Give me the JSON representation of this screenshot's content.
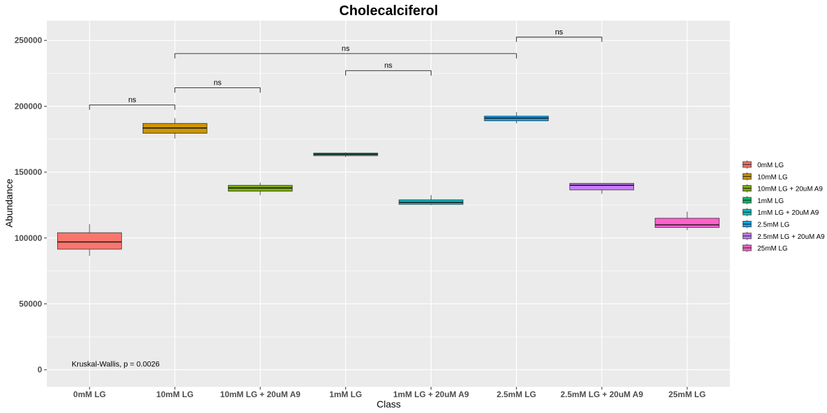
{
  "chart_data": {
    "type": "box",
    "title": "Cholecalciferol",
    "xlabel": "Class",
    "ylabel": "Abundance",
    "ylim": [
      -13000,
      265000
    ],
    "yticks": [
      0,
      50000,
      100000,
      150000,
      200000,
      250000
    ],
    "grid": true,
    "legend_position": "right",
    "categories": [
      "0mM LG",
      "10mM LG",
      "10mM LG + 20uM A9",
      "1mM LG",
      "1mM LG + 20uM A9",
      "2.5mM LG",
      "2.5mM LG + 20uM A9",
      "25mM LG"
    ],
    "colors": [
      "#F8766D",
      "#CD9600",
      "#7CAE00",
      "#00BE67",
      "#00BFC4",
      "#00A9FF",
      "#C77CFF",
      "#FF61CC"
    ],
    "boxes": [
      {
        "name": "0mM LG",
        "min": 86500,
        "q1": 91500,
        "median": 97000,
        "q3": 104000,
        "max": 110500
      },
      {
        "name": "10mM LG",
        "min": 175500,
        "q1": 179500,
        "median": 183500,
        "q3": 187000,
        "max": 191000
      },
      {
        "name": "10mM LG + 20uM A9",
        "min": 132500,
        "q1": 135500,
        "median": 138000,
        "q3": 140000,
        "max": 142000
      },
      {
        "name": "1mM LG",
        "min": 161500,
        "q1": 162500,
        "median": 163500,
        "q3": 164500,
        "max": 165000
      },
      {
        "name": "1mM LG + 20uM A9",
        "min": 125000,
        "q1": 125500,
        "median": 127000,
        "q3": 129000,
        "max": 132500
      },
      {
        "name": "2.5mM LG",
        "min": 187000,
        "q1": 189000,
        "median": 191000,
        "q3": 192500,
        "max": 195500
      },
      {
        "name": "2.5mM LG + 20uM A9",
        "min": 133500,
        "q1": 136500,
        "median": 140000,
        "q3": 141500,
        "max": 141500
      },
      {
        "name": "25mM LG",
        "min": 106000,
        "q1": 108000,
        "median": 110000,
        "q3": 115000,
        "max": 120000
      }
    ],
    "comparisons": [
      {
        "from": "0mM LG",
        "to": "10mM LG",
        "y": 201000,
        "label": "ns"
      },
      {
        "from": "10mM LG",
        "to": "10mM LG + 20uM A9",
        "y": 214000,
        "label": "ns"
      },
      {
        "from": "1mM LG",
        "to": "1mM LG + 20uM A9",
        "y": 227000,
        "label": "ns"
      },
      {
        "from": "10mM LG",
        "to": "2.5mM LG",
        "y": 240000,
        "label": "ns"
      },
      {
        "from": "2.5mM LG",
        "to": "2.5mM LG + 20uM A9",
        "y": 252500,
        "label": "ns"
      }
    ],
    "annotation": {
      "text": "Kruskal-Wallis, p = 0.0026",
      "x": "0mM LG",
      "y": 2000
    }
  }
}
